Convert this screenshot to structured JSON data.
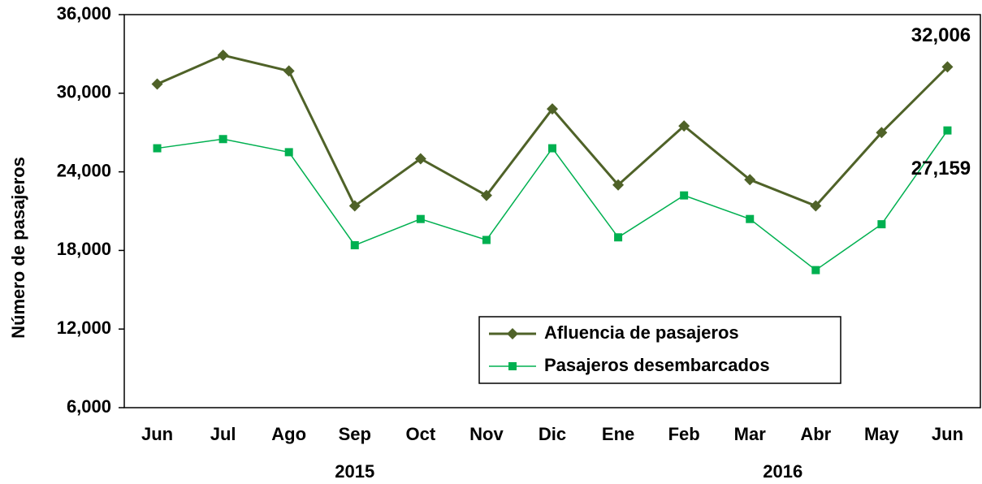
{
  "chart_data": {
    "type": "line",
    "y_label": "Número de pasajeros",
    "categories": [
      "Jun",
      "Jul",
      "Ago",
      "Sep",
      "Oct",
      "Nov",
      "Dic",
      "Ene",
      "Feb",
      "Mar",
      "Abr",
      "May",
      "Jun"
    ],
    "x_groups": [
      {
        "label": "2015",
        "count": 7
      },
      {
        "label": "2016",
        "count": 6
      }
    ],
    "series": [
      {
        "name": "Afluencia de pasajeros",
        "color": "#4f6228",
        "marker": "diamond",
        "values": [
          30700,
          32900,
          31700,
          21400,
          25000,
          22200,
          28800,
          23000,
          27500,
          23400,
          21400,
          27000,
          32006
        ],
        "value_labels": [
          null,
          null,
          null,
          null,
          null,
          null,
          null,
          null,
          null,
          null,
          null,
          null,
          "32,006"
        ]
      },
      {
        "name": "Pasajeros desembarcados",
        "color": "#00b050",
        "marker": "square",
        "values": [
          25800,
          26500,
          25500,
          18400,
          20400,
          18800,
          25800,
          19000,
          22200,
          20400,
          16500,
          20000,
          27159
        ],
        "value_labels": [
          null,
          null,
          null,
          null,
          null,
          null,
          null,
          null,
          null,
          null,
          null,
          null,
          "27,159"
        ]
      }
    ],
    "ylim": [
      6000,
      36000
    ],
    "yticks": [
      {
        "value": 6000,
        "label": "6,000"
      },
      {
        "value": 12000,
        "label": "12,000"
      },
      {
        "value": 18000,
        "label": "18,000"
      },
      {
        "value": 24000,
        "label": "24,000"
      },
      {
        "value": 30000,
        "label": "30,000"
      },
      {
        "value": 36000,
        "label": "36,000"
      }
    ],
    "grid": false,
    "legend": "lower right"
  }
}
